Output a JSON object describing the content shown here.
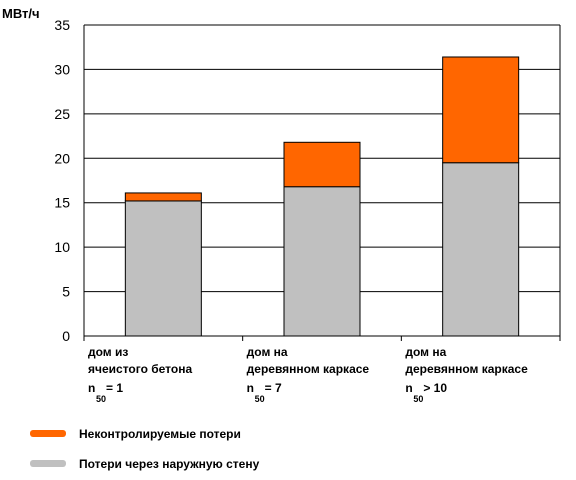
{
  "chart_data": {
    "type": "bar",
    "stacked": true,
    "ylabel": "МВт/ч",
    "ylim": [
      0,
      35
    ],
    "yticks": [
      0,
      5,
      10,
      15,
      20,
      25,
      30,
      35
    ],
    "grid": true,
    "legend_position": "bottom-left",
    "categories": [
      {
        "lines": [
          "дом из",
          "ячеистого бетона"
        ],
        "n_label": "n",
        "n_sub": "50",
        "n_value": "= 1"
      },
      {
        "lines": [
          "дом на",
          "деревянном каркасе"
        ],
        "n_label": "n",
        "n_sub": "50",
        "n_value": "= 7"
      },
      {
        "lines": [
          "дом на",
          "деревянном каркасе"
        ],
        "n_label": "n",
        "n_sub": "50",
        "n_value": "> 10"
      }
    ],
    "series": [
      {
        "name": "Потери через наружную стену",
        "color": "#c0c0c0",
        "values": [
          15.2,
          16.8,
          19.5
        ]
      },
      {
        "name": "Неконтролируемые потери",
        "color": "#ff6600",
        "values": [
          0.9,
          5.0,
          11.9
        ]
      }
    ]
  },
  "legend": [
    {
      "label": "Неконтролируемые потери",
      "color": "#ff6600"
    },
    {
      "label": "Потери через наружную стену",
      "color": "#c0c0c0"
    }
  ]
}
